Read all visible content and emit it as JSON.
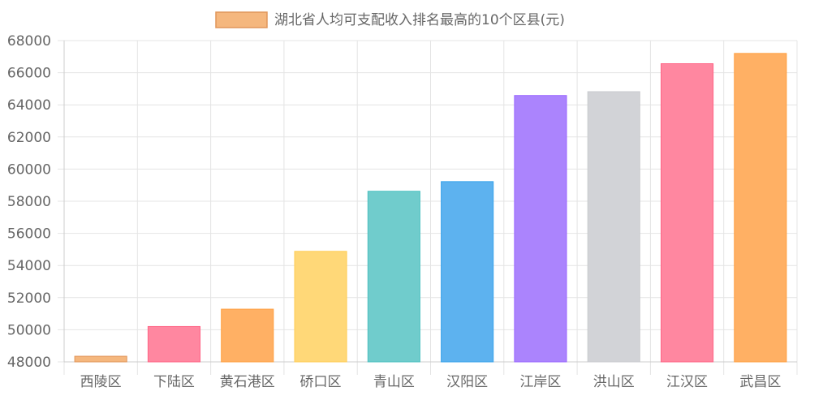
{
  "chart_data": {
    "type": "bar",
    "legend_label": "湖北省人均可支配收入排名最高的10个区县(元)",
    "legend_position": "top",
    "categories": [
      "西陵区",
      "下陆区",
      "黄石港区",
      "硚口区",
      "青山区",
      "汉阳区",
      "江岸区",
      "洪山区",
      "江汉区",
      "武昌区"
    ],
    "values": [
      48350,
      50200,
      51280,
      54880,
      58620,
      59220,
      64580,
      64820,
      66560,
      67200
    ],
    "ylim": [
      48000,
      68000
    ],
    "yticks": [
      48000,
      50000,
      52000,
      54000,
      56000,
      58000,
      60000,
      62000,
      64000,
      66000,
      68000
    ],
    "grid": true,
    "legend_colors": {
      "fill": "#f5b77e",
      "stroke": "#e0955a"
    },
    "bar_colors": [
      {
        "fill": "#f5b77e",
        "stroke": "#e0955a"
      },
      {
        "fill": "#ff87a0",
        "stroke": "#ff6384"
      },
      {
        "fill": "#ffb064",
        "stroke": "#ff9f40"
      },
      {
        "fill": "#ffd878",
        "stroke": "#ffcd56"
      },
      {
        "fill": "#70cccc",
        "stroke": "#4bc0c0"
      },
      {
        "fill": "#5db2ef",
        "stroke": "#36a2eb"
      },
      {
        "fill": "#ab84fd",
        "stroke": "#9966ff"
      },
      {
        "fill": "#d2d3d7",
        "stroke": "#c9cbcf"
      },
      {
        "fill": "#ff87a0",
        "stroke": "#ff6384"
      },
      {
        "fill": "#ffb064",
        "stroke": "#ff9f40"
      }
    ],
    "text_color": "#666666",
    "grid_color": "#e4e4e4"
  }
}
